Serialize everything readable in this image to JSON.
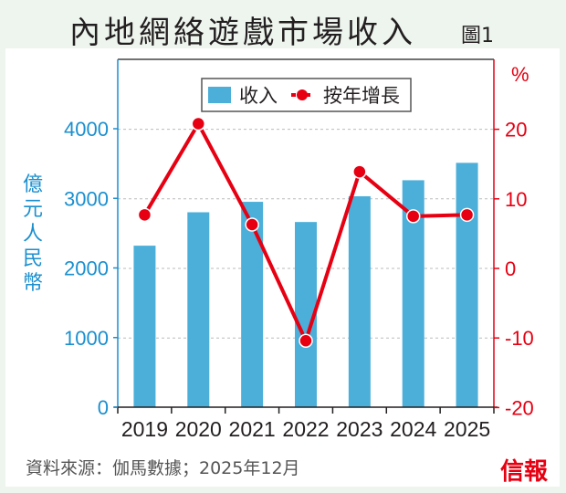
{
  "title": "內地網絡遊戲市場收入",
  "figure_label": "圖1",
  "source": "資料來源：伽馬數據；2025年12月",
  "logo_text": "信報",
  "colors": {
    "bar": "#4bafd9",
    "line": "#e60012",
    "left_axis": "#1b8fcf",
    "right_axis": "#e60012"
  },
  "chart_data": {
    "type": "bar+line",
    "categories": [
      "2019",
      "2020",
      "2021",
      "2022",
      "2023",
      "2024",
      "2025"
    ],
    "series": [
      {
        "name": "收入",
        "type": "bar",
        "axis": "left",
        "values": [
          2320,
          2800,
          2950,
          2660,
          3030,
          3260,
          3510
        ]
      },
      {
        "name": "按年增長",
        "type": "line",
        "axis": "right",
        "values": [
          7.7,
          20.8,
          6.3,
          -10.4,
          13.9,
          7.5,
          7.7
        ]
      }
    ],
    "ylabel": "億元人民幣",
    "ylim": [
      0,
      4000
    ],
    "yticks": [
      "0",
      "1000",
      "2000",
      "3000",
      "4000"
    ],
    "y2label": "%",
    "y2lim": [
      -20,
      30
    ],
    "y2ticks": [
      "-20",
      "-10",
      "0",
      "10",
      "20"
    ],
    "grid": true,
    "legend": "top-center"
  }
}
